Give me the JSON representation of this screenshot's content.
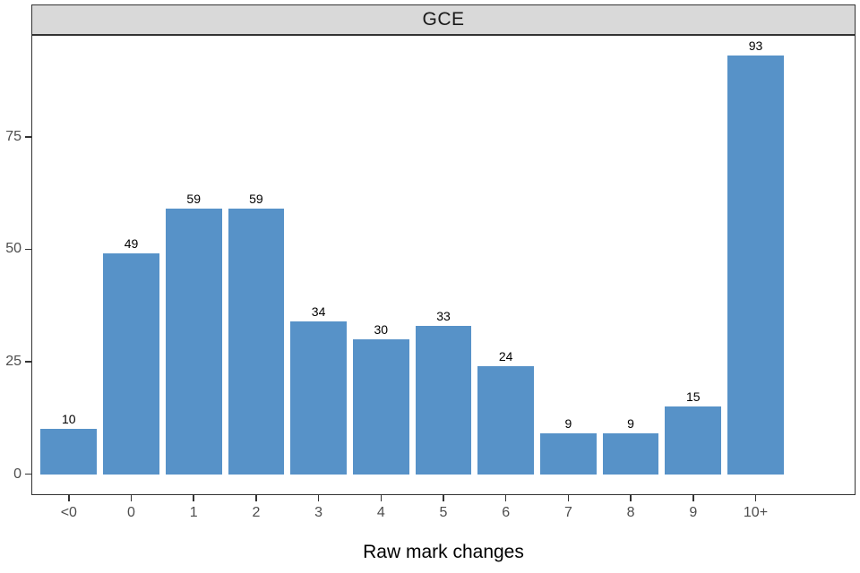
{
  "chart_data": {
    "type": "bar",
    "title": "GCE",
    "xlabel": "Raw mark changes",
    "ylabel": "",
    "categories": [
      "<0",
      "0",
      "1",
      "2",
      "3",
      "4",
      "5",
      "6",
      "7",
      "8",
      "9",
      "10+"
    ],
    "values": [
      10,
      49,
      59,
      59,
      34,
      30,
      33,
      24,
      9,
      9,
      15,
      93
    ],
    "yticks": [
      0,
      25,
      50,
      75
    ],
    "ylim": [
      -4.65,
      97.65
    ],
    "grid": "off",
    "legend": "none",
    "bar_width_fraction": 0.9,
    "bar_color": "#5792C8",
    "strip_fill": "#D9D9D9",
    "panel_bg": "#FFFFFF",
    "border_color": "#333333",
    "tick_label_color": "#4D4D4D",
    "value_label_color": "#000000"
  }
}
